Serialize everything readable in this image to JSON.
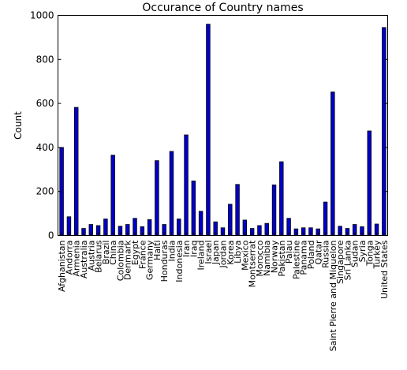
{
  "chart_data": {
    "type": "bar",
    "title": "Occurance of Country names",
    "xlabel": "",
    "ylabel": "Count",
    "ylim": [
      0,
      1000
    ],
    "yticks": [
      0,
      200,
      400,
      600,
      800,
      1000
    ],
    "grid": false,
    "legend": "none",
    "bar_color": "#0000cc",
    "categories": [
      "Afghanistan",
      "Andorra",
      "Armenia",
      "Australia",
      "Austria",
      "Belarus",
      "Brazil",
      "China",
      "Colombia",
      "Denmark",
      "Egypt",
      "France",
      "Germany",
      "Haiti",
      "Honduras",
      "India",
      "Indonesia",
      "Iran",
      "Iraq",
      "Ireland",
      "Israel",
      "Japan",
      "Jordan",
      "Korea",
      "Libya",
      "Mexico",
      "Montserrat",
      "Morocco",
      "Namibia",
      "Norway",
      "Pakistan",
      "Palau",
      "Palestine",
      "Panama",
      "Poland",
      "Qatar",
      "Russia",
      "Saint Pierre and Miquelon",
      "Singapore",
      "Sri Lanka",
      "Sudan",
      "Syria",
      "Tonga",
      "Turkey",
      "United States"
    ],
    "values": [
      400,
      85,
      582,
      32,
      50,
      45,
      75,
      365,
      42,
      50,
      78,
      40,
      72,
      340,
      50,
      382,
      75,
      457,
      248,
      110,
      960,
      62,
      35,
      142,
      232,
      70,
      32,
      45,
      55,
      230,
      335,
      78,
      30,
      35,
      35,
      30,
      152,
      652,
      42,
      32,
      50,
      40,
      475,
      52,
      945
    ]
  }
}
